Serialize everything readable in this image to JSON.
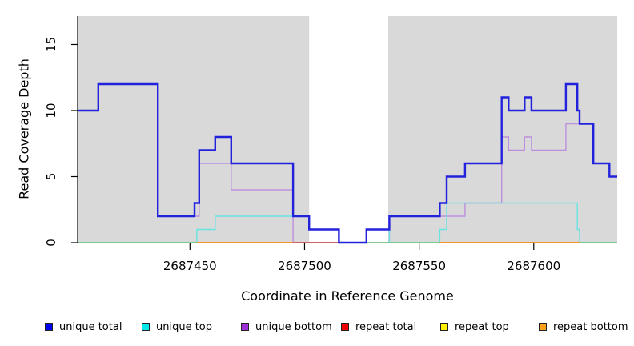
{
  "chart_data": {
    "type": "step-line",
    "title": "",
    "xlabel": "Coordinate in Reference Genome",
    "ylabel": "Read Coverage Depth",
    "xlim": [
      2687401,
      2687636.4
    ],
    "ylim": [
      0,
      17.15
    ],
    "x_ticks": [
      2687450,
      2687500,
      2687550,
      2687600
    ],
    "y_ticks": [
      0,
      5,
      10,
      15
    ],
    "grid": false,
    "plot_background": "#ffffff",
    "shaded_regions": [
      {
        "x0": 2687401,
        "x1": 2687502,
        "color": "#d9d9d9"
      },
      {
        "x0": 2687536.5,
        "x1": 2687636.4,
        "color": "#d9d9d9"
      }
    ],
    "series": [
      {
        "name": "unique bottom",
        "color": "#bd8fdd",
        "width": 1.4,
        "points": [
          [
            2687401,
            10
          ],
          [
            2687410,
            12
          ],
          [
            2687436,
            2
          ],
          [
            2687454,
            6
          ],
          [
            2687468,
            4
          ],
          [
            2687495,
            0
          ],
          [
            2687537,
            2
          ],
          [
            2687570,
            3
          ],
          [
            2687586,
            8
          ],
          [
            2687589,
            7
          ],
          [
            2687596,
            8
          ],
          [
            2687599,
            7
          ],
          [
            2687614,
            9
          ],
          [
            2687626,
            6
          ],
          [
            2687633,
            5
          ]
        ]
      },
      {
        "name": "unique top",
        "color": "#66e3e3",
        "width": 1.4,
        "points": [
          [
            2687401,
            0
          ],
          [
            2687453,
            1
          ],
          [
            2687461,
            2
          ],
          [
            2687502,
            1
          ],
          [
            2687515,
            0
          ],
          [
            2687527,
            1
          ],
          [
            2687537,
            0
          ],
          [
            2687559,
            1
          ],
          [
            2687562,
            3
          ],
          [
            2687619,
            1
          ],
          [
            2687620,
            0
          ]
        ]
      },
      {
        "name": "baseline",
        "color": "#74c474",
        "width": 1.5,
        "points": [
          [
            2687401,
            0
          ]
        ]
      },
      {
        "name": "repeat bottom",
        "color": "#ff8c19",
        "width": 1.8,
        "segments": [
          [
            2687453,
            2687495
          ],
          [
            2687559,
            2687620
          ]
        ]
      },
      {
        "name": "repeat total",
        "color": "#d84353",
        "width": 1.5,
        "segments": [
          [
            2687495,
            2687515
          ]
        ]
      },
      {
        "name": "unique total",
        "color": "#2222dd",
        "width": 2.4,
        "points": [
          [
            2687401,
            10
          ],
          [
            2687410,
            12
          ],
          [
            2687436,
            2
          ],
          [
            2687452,
            3
          ],
          [
            2687454,
            7
          ],
          [
            2687461,
            8
          ],
          [
            2687468,
            6
          ],
          [
            2687495,
            2
          ],
          [
            2687502,
            1
          ],
          [
            2687515,
            0
          ],
          [
            2687527,
            1
          ],
          [
            2687537,
            2
          ],
          [
            2687559,
            3
          ],
          [
            2687562,
            5
          ],
          [
            2687570,
            6
          ],
          [
            2687586,
            11
          ],
          [
            2687589,
            10
          ],
          [
            2687596,
            11
          ],
          [
            2687599,
            10
          ],
          [
            2687614,
            12
          ],
          [
            2687619,
            10
          ],
          [
            2687620,
            9
          ],
          [
            2687626,
            6
          ],
          [
            2687633,
            5
          ]
        ]
      }
    ]
  },
  "legend": {
    "items": [
      {
        "label": "unique total",
        "color": "#0000f0"
      },
      {
        "label": "unique top",
        "color": "#00e8e8"
      },
      {
        "label": "unique bottom",
        "color": "#9d2fd6"
      },
      {
        "label": "repeat total",
        "color": "#f00000"
      },
      {
        "label": "repeat top",
        "color": "#fff000"
      },
      {
        "label": "repeat bottom",
        "color": "#ffa019"
      }
    ]
  }
}
